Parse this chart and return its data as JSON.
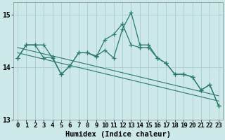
{
  "background_color": "#cce8e8",
  "grid_color": "#aacccc",
  "line_color": "#2a7a6a",
  "x_values": [
    0,
    1,
    2,
    3,
    4,
    5,
    6,
    7,
    8,
    9,
    10,
    11,
    12,
    13,
    14,
    15,
    16,
    17,
    18,
    19,
    20,
    21,
    22,
    23
  ],
  "series1": [
    14.18,
    14.43,
    14.43,
    14.43,
    14.18,
    13.87,
    14.03,
    14.28,
    14.28,
    14.22,
    14.33,
    14.18,
    14.73,
    15.05,
    14.43,
    14.43,
    14.18,
    14.08,
    13.87,
    13.87,
    13.82,
    13.57,
    13.67,
    13.27
  ],
  "series2": [
    14.18,
    14.43,
    14.43,
    14.18,
    14.2,
    13.87,
    14.03,
    14.28,
    14.28,
    14.2,
    14.53,
    14.63,
    14.83,
    14.43,
    14.38,
    14.38,
    14.18,
    14.08,
    13.87,
    13.87,
    13.82,
    13.57,
    13.67,
    13.27
  ],
  "trend1": [
    14.38,
    14.34,
    14.3,
    14.26,
    14.22,
    14.18,
    14.14,
    14.1,
    14.06,
    14.02,
    13.98,
    13.94,
    13.9,
    13.86,
    13.82,
    13.78,
    13.74,
    13.7,
    13.66,
    13.62,
    13.58,
    13.54,
    13.5,
    13.46
  ],
  "trend2": [
    14.28,
    14.24,
    14.2,
    14.16,
    14.12,
    14.08,
    14.04,
    14.0,
    13.96,
    13.92,
    13.88,
    13.84,
    13.8,
    13.76,
    13.72,
    13.68,
    13.64,
    13.6,
    13.56,
    13.52,
    13.48,
    13.44,
    13.4,
    13.36
  ],
  "xlabel": "Humidex (Indice chaleur)",
  "xlim": [
    -0.5,
    23.5
  ],
  "ylim": [
    13.0,
    15.25
  ],
  "yticks": [
    13,
    14,
    15
  ],
  "xticks": [
    0,
    1,
    2,
    3,
    4,
    5,
    6,
    7,
    8,
    9,
    10,
    11,
    12,
    13,
    14,
    15,
    16,
    17,
    18,
    19,
    20,
    21,
    22,
    23
  ],
  "tick_fontsize": 6.5,
  "xlabel_fontsize": 7.5
}
